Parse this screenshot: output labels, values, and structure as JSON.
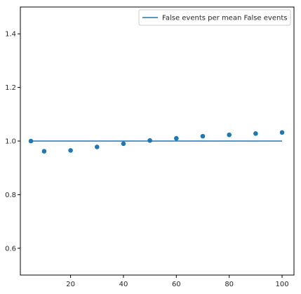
{
  "chart_data": {
    "type": "scatter",
    "title": "",
    "xlabel": "",
    "ylabel": "",
    "xlim": [
      1,
      104.5
    ],
    "ylim": [
      0.5,
      1.5
    ],
    "x_ticks": [
      20,
      40,
      60,
      80,
      100
    ],
    "y_ticks": [
      0.6,
      0.8,
      1.0,
      1.2,
      1.4
    ],
    "x_tick_labels": [
      "20",
      "40",
      "60",
      "80",
      "100"
    ],
    "y_tick_labels": [
      "0.6",
      "0.8",
      "1.0",
      "1.2",
      "1.4"
    ],
    "grid": false,
    "legend_position": "top-right",
    "series": [
      {
        "kind": "points",
        "color": "#1f77b4",
        "x": [
          5,
          10,
          20,
          30,
          40,
          50,
          60,
          70,
          80,
          90,
          100
        ],
        "y": [
          1.0,
          0.962,
          0.965,
          0.978,
          0.99,
          1.002,
          1.01,
          1.018,
          1.023,
          1.028,
          1.032
        ]
      },
      {
        "kind": "line",
        "name": "False events per mean False events",
        "color": "#1f77b4",
        "x": [
          5,
          100
        ],
        "y": [
          1.0,
          1.0
        ]
      }
    ]
  }
}
